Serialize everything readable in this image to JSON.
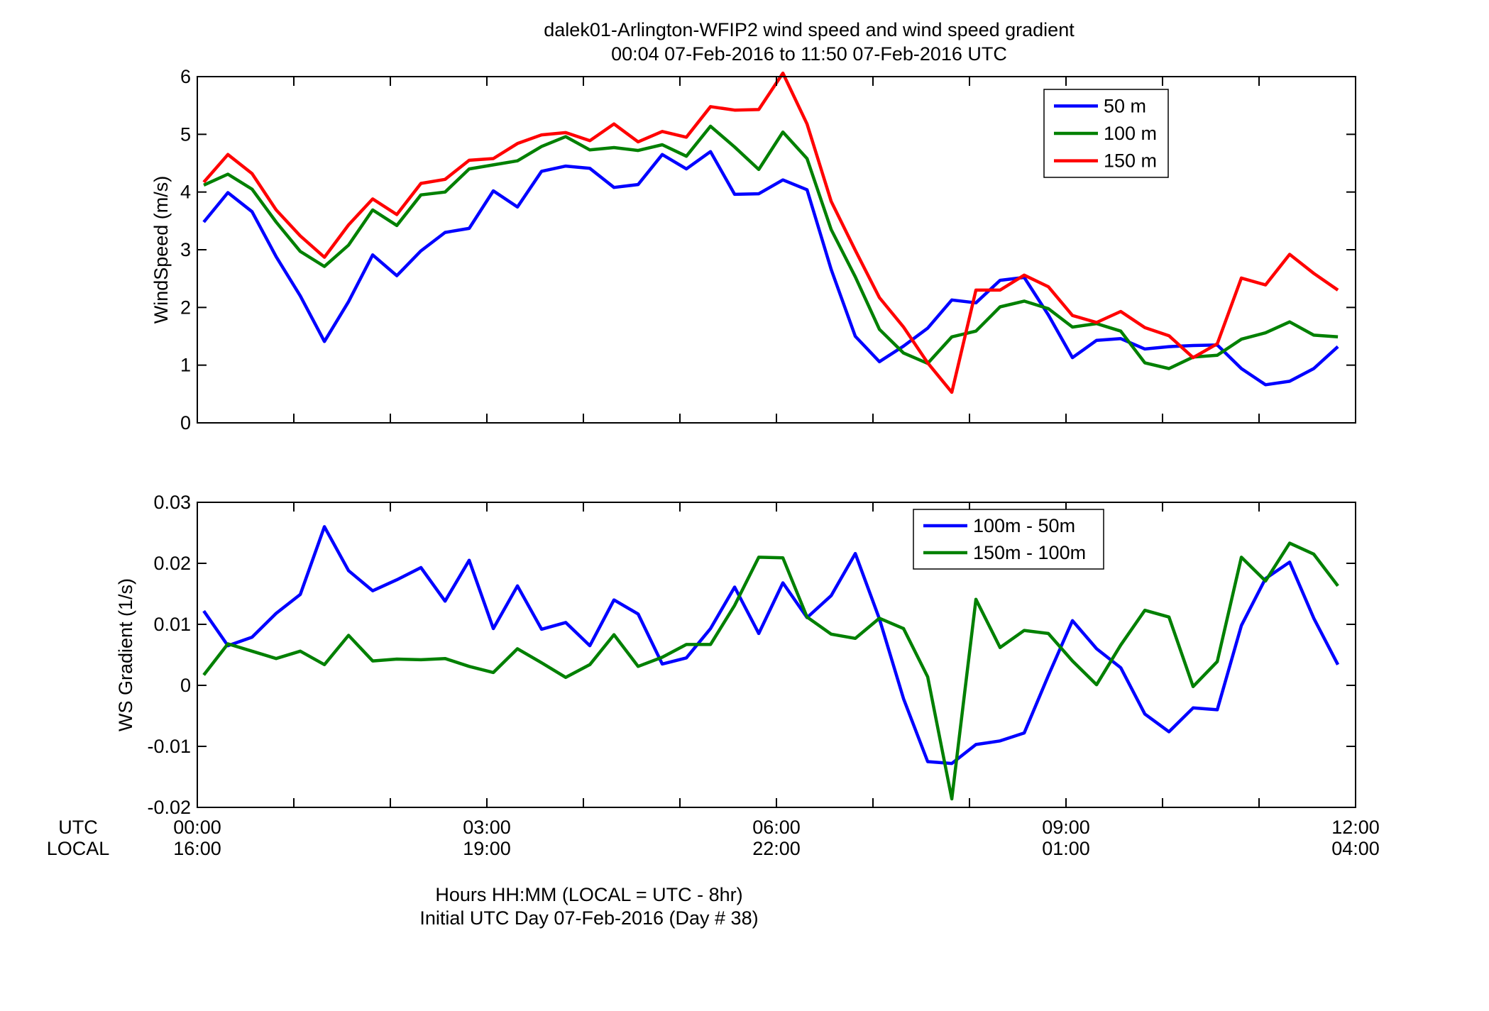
{
  "figure": {
    "title_line1": "dalek01-Arlington-WFIP2  wind speed and wind speed gradient",
    "title_line2": "00:04 07-Feb-2016 to 11:50 07-Feb-2016  UTC",
    "xlabel_line1": "Hours HH:MM  (LOCAL = UTC - 8hr)",
    "xlabel_line2": "Initial UTC Day 07-Feb-2016 (Day # 38)",
    "row_label_utc": "UTC",
    "row_label_local": "LOCAL",
    "x_ticks_utc": [
      "00:00",
      "03:00",
      "06:00",
      "09:00",
      "12:00"
    ],
    "x_ticks_local": [
      "16:00",
      "19:00",
      "22:00",
      "01:00",
      "04:00"
    ],
    "x_tick_hours": [
      0,
      3,
      6,
      9,
      12
    ]
  },
  "chart_data": [
    {
      "type": "line",
      "ylabel": "WindSpeed (m/s)",
      "xlim": [
        0,
        12
      ],
      "ylim": [
        0,
        6
      ],
      "yticks": [
        0,
        1,
        2,
        3,
        4,
        5,
        6
      ],
      "ytick_labels": [
        "0",
        "1",
        "2",
        "3",
        "4",
        "5",
        "6"
      ],
      "legend_placement": "top-right",
      "x": [
        0.067,
        0.317,
        0.567,
        0.817,
        1.067,
        1.317,
        1.567,
        1.817,
        2.067,
        2.317,
        2.567,
        2.817,
        3.067,
        3.317,
        3.567,
        3.817,
        4.067,
        4.317,
        4.567,
        4.817,
        5.067,
        5.317,
        5.567,
        5.817,
        6.067,
        6.317,
        6.567,
        6.817,
        7.067,
        7.317,
        7.567,
        7.817,
        8.067,
        8.317,
        8.567,
        8.817,
        9.067,
        9.317,
        9.567,
        9.817,
        10.067,
        10.317,
        10.567,
        10.817,
        11.067,
        11.317,
        11.567,
        11.817
      ],
      "series": [
        {
          "name": "50 m",
          "color": "#0000ff",
          "values": [
            3.48,
            3.99,
            3.66,
            2.88,
            2.2,
            1.41,
            2.1,
            2.91,
            2.55,
            2.98,
            3.3,
            3.37,
            4.02,
            3.74,
            4.36,
            4.45,
            4.41,
            4.08,
            4.13,
            4.65,
            4.4,
            4.7,
            3.96,
            3.97,
            4.21,
            4.04,
            2.66,
            1.5,
            1.06,
            1.33,
            1.64,
            2.13,
            2.08,
            2.47,
            2.52,
            1.87,
            1.13,
            1.43,
            1.46,
            1.28,
            1.32,
            1.34,
            1.35,
            0.94,
            0.66,
            0.72,
            0.94,
            1.32
          ]
        },
        {
          "name": "100 m",
          "color": "#008000",
          "values": [
            4.12,
            4.31,
            4.05,
            3.48,
            2.97,
            2.71,
            3.08,
            3.69,
            3.42,
            3.95,
            4.0,
            4.4,
            4.47,
            4.54,
            4.79,
            4.96,
            4.73,
            4.77,
            4.72,
            4.82,
            4.62,
            5.14,
            4.78,
            4.39,
            5.04,
            4.58,
            3.35,
            2.53,
            1.62,
            1.21,
            1.03,
            1.49,
            1.59,
            2.01,
            2.11,
            1.98,
            1.66,
            1.72,
            1.59,
            1.04,
            0.94,
            1.14,
            1.17,
            1.45,
            1.56,
            1.75,
            1.52,
            1.49
          ]
        },
        {
          "name": "150 m",
          "color": "#ff0000",
          "values": [
            4.17,
            4.65,
            4.32,
            3.69,
            3.24,
            2.87,
            3.43,
            3.88,
            3.61,
            4.15,
            4.22,
            4.55,
            4.58,
            4.84,
            4.99,
            5.03,
            4.89,
            5.18,
            4.87,
            5.05,
            4.95,
            5.48,
            5.42,
            5.43,
            6.06,
            5.18,
            3.84,
            2.99,
            2.17,
            1.66,
            1.04,
            0.53,
            2.3,
            2.3,
            2.56,
            2.36,
            1.86,
            1.74,
            1.93,
            1.65,
            1.51,
            1.13,
            1.37,
            2.51,
            2.39,
            2.92,
            2.59,
            2.3
          ]
        }
      ]
    },
    {
      "type": "line",
      "ylabel": "WS Gradient (1/s)",
      "xlim": [
        0,
        12
      ],
      "ylim": [
        -0.02,
        0.03
      ],
      "yticks": [
        -0.02,
        -0.01,
        0,
        0.01,
        0.02,
        0.03
      ],
      "ytick_labels": [
        "-0.02",
        "-0.01",
        "0",
        "0.01",
        "0.02",
        "0.03"
      ],
      "legend_placement": "top-right",
      "x": [
        0.067,
        0.317,
        0.567,
        0.817,
        1.067,
        1.317,
        1.567,
        1.817,
        2.067,
        2.317,
        2.567,
        2.817,
        3.067,
        3.317,
        3.567,
        3.817,
        4.067,
        4.317,
        4.567,
        4.817,
        5.067,
        5.317,
        5.567,
        5.817,
        6.067,
        6.317,
        6.567,
        6.817,
        7.067,
        7.317,
        7.567,
        7.817,
        8.067,
        8.317,
        8.567,
        8.817,
        9.067,
        9.317,
        9.567,
        9.817,
        10.067,
        10.317,
        10.567,
        10.817,
        11.067,
        11.317,
        11.567,
        11.817
      ],
      "series": [
        {
          "name": "100m - 50m",
          "color": "#0000ff",
          "values": [
            0.0122,
            0.0065,
            0.0079,
            0.0118,
            0.0149,
            0.026,
            0.0188,
            0.0155,
            0.0173,
            0.0193,
            0.0138,
            0.0205,
            0.0093,
            0.0163,
            0.0092,
            0.0103,
            0.0065,
            0.014,
            0.0117,
            0.0035,
            0.0045,
            0.0093,
            0.0161,
            0.0085,
            0.0168,
            0.0111,
            0.0147,
            0.0216,
            0.0109,
            -0.0022,
            -0.0125,
            -0.0128,
            -0.0097,
            -0.0091,
            -0.0078,
            0.0016,
            0.0106,
            0.006,
            0.0029,
            -0.0047,
            -0.0076,
            -0.0037,
            -0.004,
            0.0098,
            0.0175,
            0.0202,
            0.011,
            0.0034
          ]
        },
        {
          "name": "150m - 100m",
          "color": "#008000",
          "values": [
            0.0017,
            0.0068,
            0.0056,
            0.0044,
            0.0056,
            0.0034,
            0.0082,
            0.004,
            0.0043,
            0.0042,
            0.0044,
            0.0031,
            0.0021,
            0.006,
            0.0037,
            0.0013,
            0.0034,
            0.0083,
            0.0031,
            0.0046,
            0.0067,
            0.0067,
            0.0131,
            0.021,
            0.0209,
            0.0112,
            0.0084,
            0.0077,
            0.011,
            0.0093,
            0.0014,
            -0.0186,
            0.0141,
            0.0062,
            0.009,
            0.0085,
            0.004,
            0.0001,
            0.0066,
            0.0123,
            0.0112,
            -0.0002,
            0.0039,
            0.021,
            0.0171,
            0.0233,
            0.0215,
            0.0163
          ]
        }
      ]
    }
  ]
}
